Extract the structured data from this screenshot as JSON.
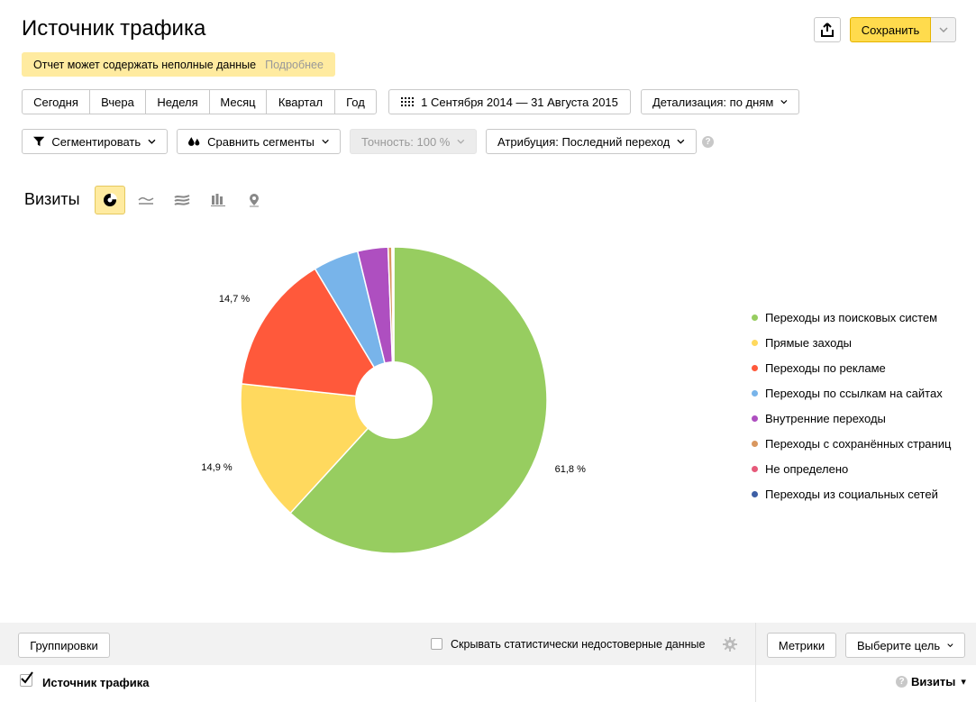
{
  "header": {
    "title": "Источник трафика",
    "save_label": "Сохранить"
  },
  "warning": {
    "text": "Отчет может содержать неполные данные",
    "more": "Подробнее"
  },
  "periods": [
    "Сегодня",
    "Вчера",
    "Неделя",
    "Месяц",
    "Квартал",
    "Год"
  ],
  "date_range": "1 Сентября 2014 — 31 Августа 2015",
  "detail": "Детализация: по дням",
  "segment": "Сегментировать",
  "compare": "Сравнить сегменты",
  "accuracy": "Точность: 100 %",
  "attribution": "Атрибуция: Последний переход",
  "help": "?",
  "metric": "Визиты",
  "chart_data": {
    "type": "pie",
    "donut": true,
    "series": [
      {
        "name": "Переходы из поисковых систем",
        "value": 61.8,
        "color": "#97cd60",
        "label": "61,8 %"
      },
      {
        "name": "Прямые заходы",
        "value": 14.9,
        "color": "#ffd95e",
        "label": "14,9 %"
      },
      {
        "name": "Переходы по рекламе",
        "value": 14.7,
        "color": "#ff593b",
        "label": "14,7 %"
      },
      {
        "name": "Переходы по ссылкам на сайтах",
        "value": 4.8,
        "color": "#78b4ea",
        "label": ""
      },
      {
        "name": "Внутренние переходы",
        "value": 3.2,
        "color": "#ae4fc0",
        "label": ""
      },
      {
        "name": "Переходы с сохранённых страниц",
        "value": 0.4,
        "color": "#d9975f",
        "label": ""
      },
      {
        "name": "Не определено",
        "value": 0.1,
        "color": "#e65a7a",
        "label": ""
      },
      {
        "name": "Переходы из социальных сетей",
        "value": 0.1,
        "color": "#3d5fa5",
        "label": ""
      }
    ]
  },
  "bottom": {
    "groupings": "Группировки",
    "hide_unreliable": "Скрывать статистически недостоверные данные",
    "metrics": "Метрики",
    "goal": "Выберите цель"
  },
  "table": {
    "row_label": "Источник трафика",
    "visits_col": "Визиты",
    "visits_q": "?",
    "sort_arrow": "▾"
  }
}
